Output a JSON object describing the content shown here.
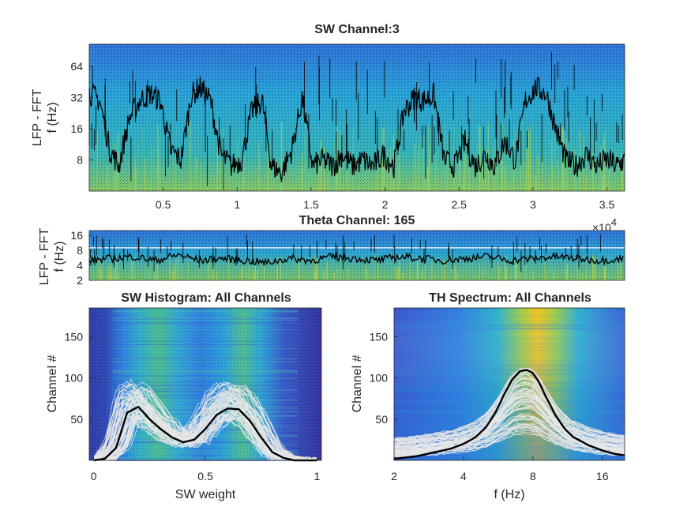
{
  "figure": {
    "colors": {
      "background": "#ffffff",
      "text": "#262626",
      "spec_low": "#2b3ea8",
      "spec_mid": "#27a7d6",
      "spec_high": "#a6d24a",
      "spec_peak": "#f0c419",
      "trace": "#000000",
      "channel_curves": "#e6e6e6",
      "threshold_line": "#ffffff"
    }
  },
  "chart_data": [
    {
      "type": "heatmap",
      "id": "sw",
      "title": "SW Channel:3",
      "xlabel": "",
      "ylabel": [
        "LFP - FFT",
        "f (Hz)"
      ],
      "x_ticks": [
        "0.5",
        "1",
        "1.5",
        "2",
        "2.5",
        "3",
        "3.5"
      ],
      "x_tick_values": [
        0.5,
        1,
        1.5,
        2,
        2.5,
        3,
        3.5
      ],
      "x_multiplier": "×10",
      "x_exponent": "4",
      "xlim": [
        0,
        3.62
      ],
      "y_scale": "log",
      "y_ticks": [
        "8",
        "16",
        "32",
        "64"
      ],
      "y_tick_values": [
        8,
        16,
        32,
        64
      ],
      "ylim": [
        4,
        105
      ],
      "overlay": "black trace of slow-wave spectral state",
      "trace_x": [
        0.0,
        0.07,
        0.14,
        0.2,
        0.27,
        0.34,
        0.41,
        0.48,
        0.55,
        0.62,
        0.69,
        0.75,
        0.82,
        0.89,
        0.96,
        1.03,
        1.1,
        1.17,
        1.23,
        1.3,
        1.37,
        1.44,
        1.51,
        1.58,
        1.65,
        1.71,
        1.78,
        1.85,
        1.92,
        1.99,
        2.06,
        2.13,
        2.2,
        2.26,
        2.33,
        2.4,
        2.47,
        2.54,
        2.61,
        2.68,
        2.74,
        2.81,
        2.88,
        2.95,
        3.02,
        3.09,
        3.16,
        3.22,
        3.29,
        3.36,
        3.43,
        3.5,
        3.57,
        3.62
      ],
      "trace_y": [
        36,
        30,
        10,
        7,
        20,
        30,
        35,
        30,
        10,
        8,
        34,
        40,
        30,
        9,
        7,
        8,
        24,
        30,
        7,
        6,
        10,
        32,
        7,
        8,
        7,
        9,
        7,
        8,
        7,
        9,
        7,
        24,
        32,
        30,
        34,
        8,
        7,
        12,
        7,
        9,
        7,
        12,
        8,
        30,
        40,
        35,
        15,
        8,
        7,
        9,
        7,
        8,
        7,
        8
      ]
    },
    {
      "type": "heatmap",
      "id": "theta",
      "title": "Theta Channel: 165",
      "xlabel": "",
      "ylabel": [
        "LFP - FFT",
        "f (Hz)"
      ],
      "xlim": [
        0,
        3.62
      ],
      "y_scale": "log",
      "y_ticks": [
        "2",
        "4",
        "8",
        "16"
      ],
      "y_tick_values": [
        2,
        4,
        8,
        16
      ],
      "ylim": [
        2,
        20
      ],
      "threshold_hz": 9,
      "trace_x": [
        0.0,
        0.15,
        0.3,
        0.45,
        0.6,
        0.75,
        0.9,
        1.05,
        1.2,
        1.35,
        1.5,
        1.65,
        1.8,
        1.95,
        2.1,
        2.25,
        2.4,
        2.55,
        2.7,
        2.85,
        3.0,
        3.15,
        3.3,
        3.45,
        3.62
      ],
      "trace_y": [
        5,
        5.5,
        6,
        5,
        6.5,
        5,
        5.5,
        5,
        4.5,
        5.5,
        5,
        6,
        5.5,
        5,
        6,
        5.5,
        5,
        5.5,
        6,
        5,
        5.5,
        6,
        5.5,
        5,
        5.5
      ]
    },
    {
      "type": "line",
      "id": "swhist",
      "title": "SW Histogram: All Channels",
      "xlabel": "SW weight",
      "ylabel": "Channel #",
      "x_ticks": [
        "0",
        "0.5",
        "1"
      ],
      "x_tick_values": [
        0,
        0.5,
        1
      ],
      "xlim": [
        -0.02,
        1.02
      ],
      "y_ticks": [
        "50",
        "100",
        "150"
      ],
      "y_tick_values": [
        50,
        100,
        150
      ],
      "ylim": [
        0,
        185
      ],
      "background": "heatmap of SW weight histogram per channel",
      "mean_x": [
        0.0,
        0.05,
        0.1,
        0.15,
        0.2,
        0.25,
        0.3,
        0.35,
        0.4,
        0.45,
        0.5,
        0.55,
        0.6,
        0.65,
        0.7,
        0.75,
        0.8,
        0.85,
        0.9,
        0.95,
        1.0
      ],
      "mean_y": [
        0,
        2,
        15,
        58,
        65,
        50,
        38,
        28,
        22,
        25,
        38,
        55,
        63,
        62,
        48,
        28,
        10,
        3,
        0,
        0,
        0
      ]
    },
    {
      "type": "line",
      "id": "thspec",
      "title": "TH Spectrum: All Channels",
      "xlabel": "f (Hz)",
      "ylabel": "Channel #",
      "x_scale": "log",
      "x_ticks": [
        "2",
        "4",
        "8",
        "16"
      ],
      "x_tick_values": [
        2,
        4,
        8,
        16
      ],
      "xlim": [
        2,
        20
      ],
      "y_ticks": [
        "50",
        "100",
        "150"
      ],
      "y_tick_values": [
        50,
        100,
        150
      ],
      "ylim": [
        0,
        185
      ],
      "background": "heatmap of theta spectrum per channel",
      "mean_x": [
        2,
        2.5,
        3,
        3.5,
        4,
        4.5,
        5,
        5.5,
        6,
        6.5,
        7,
        7.5,
        8,
        8.5,
        9,
        10,
        11,
        12,
        14,
        16,
        18,
        20
      ],
      "mean_y": [
        2,
        5,
        10,
        14,
        20,
        28,
        40,
        58,
        80,
        98,
        108,
        110,
        106,
        95,
        80,
        55,
        38,
        28,
        18,
        12,
        8,
        6
      ]
    }
  ]
}
